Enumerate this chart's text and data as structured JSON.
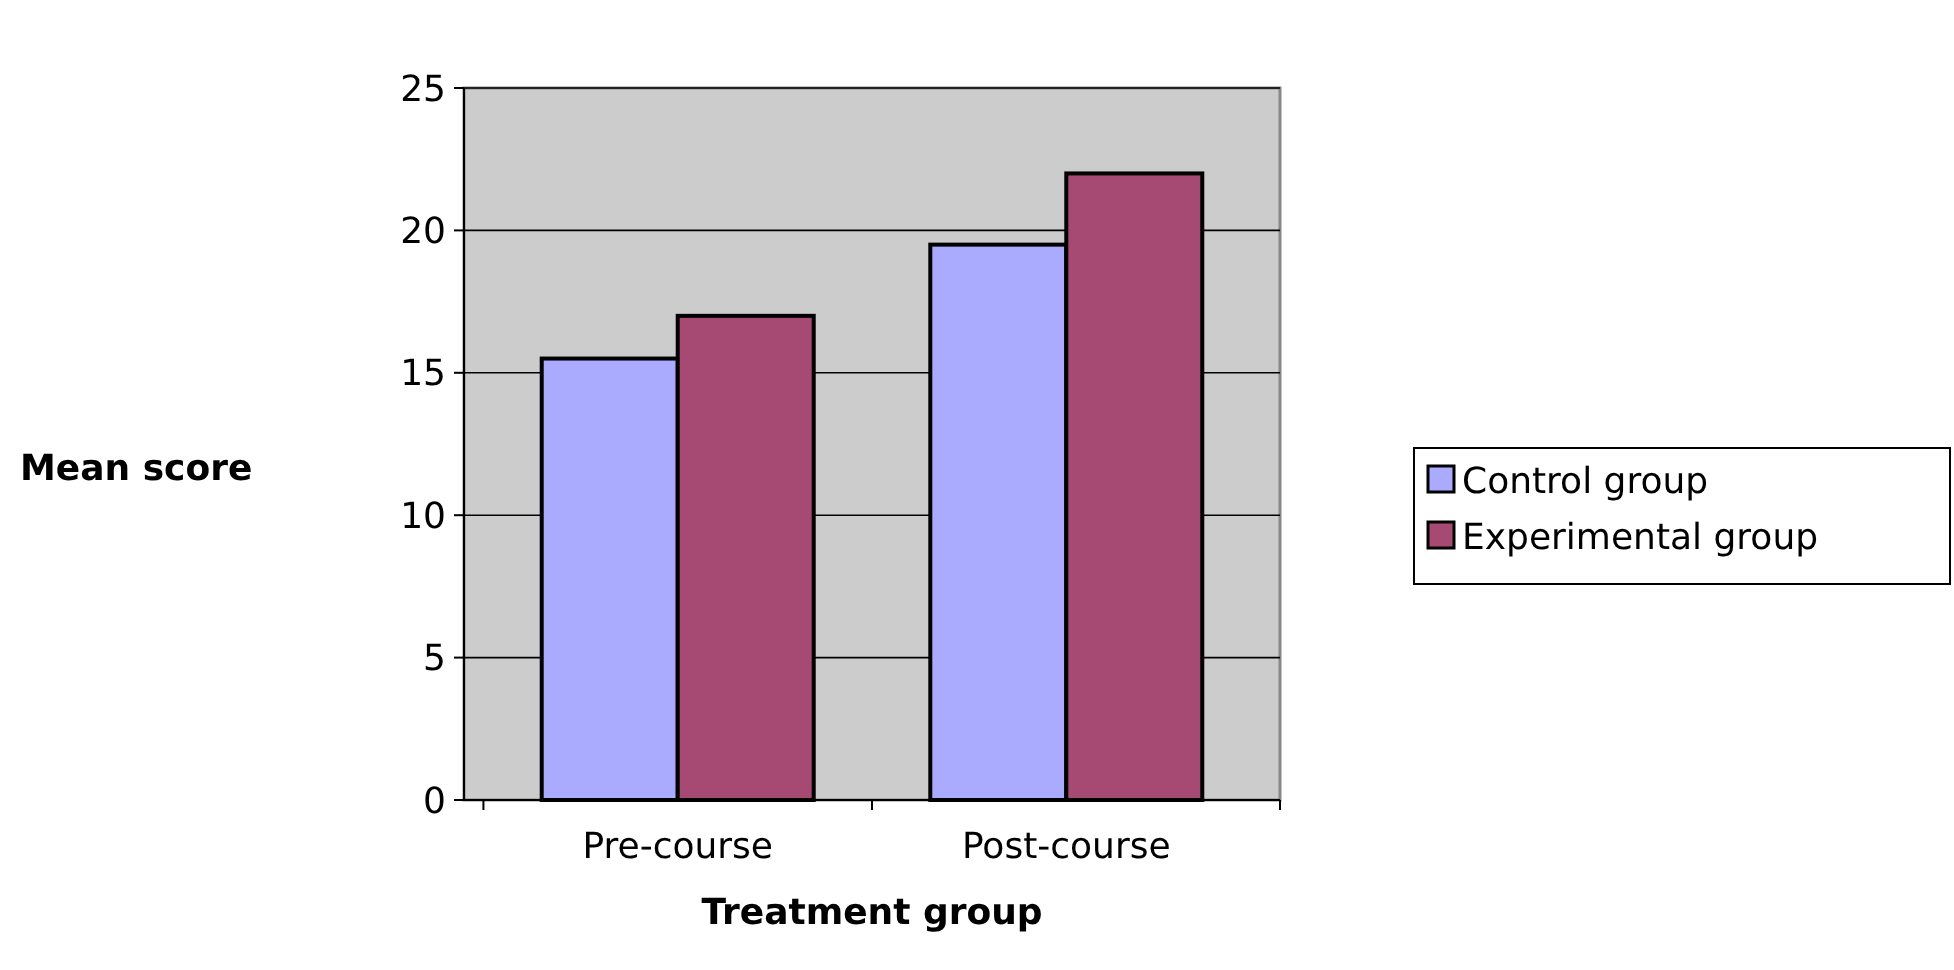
{
  "chart_data": {
    "type": "bar",
    "xlabel": "Treatment group",
    "ylabel": "Mean score",
    "categories": [
      "Pre-course",
      "Post-course"
    ],
    "series": [
      {
        "name": "Control group",
        "color": "#aaaaff",
        "values": [
          15.5,
          19.5
        ]
      },
      {
        "name": "Experimental group",
        "color": "#a64a74",
        "values": [
          17,
          22
        ]
      }
    ],
    "ylim": [
      0,
      25
    ],
    "yticks": [
      0,
      5,
      10,
      15,
      20,
      25
    ],
    "grid": "y",
    "legend": "right"
  }
}
